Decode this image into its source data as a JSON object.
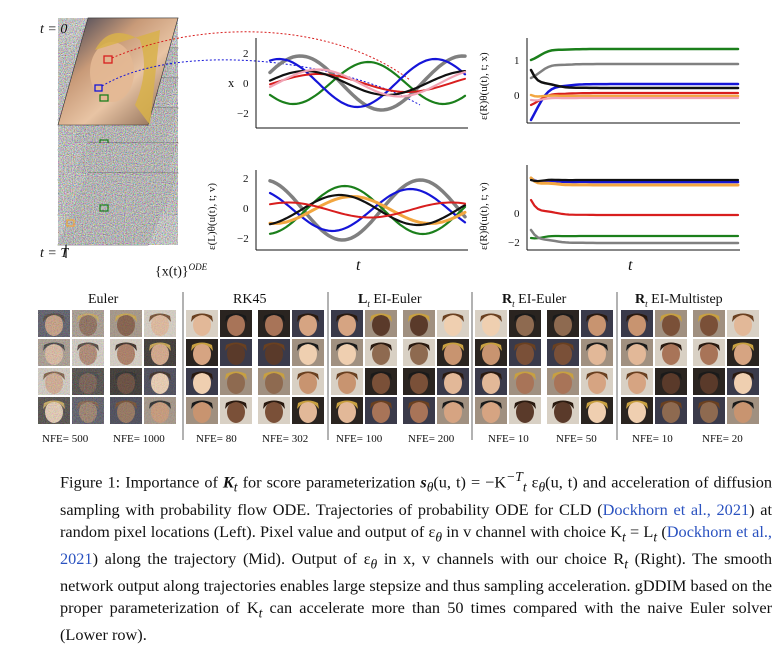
{
  "left": {
    "t_top": "t = 0",
    "t_bottom": "t = T",
    "traj_label": "{x(t)}",
    "traj_sup": "ODE"
  },
  "mid_top": {
    "ylabel": "x",
    "ticks": [
      "2",
      "0",
      "−2"
    ]
  },
  "mid_bottom": {
    "ylabel": "ε(L)θ(u(t), t; v)",
    "ticks": [
      "2",
      "0",
      "−2"
    ],
    "xlabel": "t"
  },
  "right_top": {
    "ylabel": "ε(R)θ(u(t), t; x)",
    "ticks": [
      "1",
      "0"
    ]
  },
  "right_bottom": {
    "ylabel": "ε(R)θ(u(t), t; v)",
    "ticks": [
      "0",
      "−2"
    ],
    "xlabel": "t"
  },
  "methods": [
    {
      "name": "Euler",
      "nfe": [
        "NFE= 500",
        "NFE= 1000"
      ]
    },
    {
      "name": "RK45",
      "nfe": [
        "NFE= 80",
        "NFE= 302"
      ]
    },
    {
      "name_bold": "L",
      "name_sub": "t",
      "name_rest": " EI-Euler",
      "nfe": [
        "NFE= 100",
        "NFE= 200"
      ]
    },
    {
      "name_bold": "R",
      "name_sub": "t",
      "name_rest": " EI-Euler",
      "nfe": [
        "NFE= 10",
        "NFE= 50"
      ]
    },
    {
      "name_bold": "R",
      "name_sub": "t",
      "name_rest": " EI-Multistep",
      "nfe": [
        "NFE= 10",
        "NFE= 20"
      ]
    }
  ],
  "caption": {
    "p1": "Figure 1: Importance of ",
    "k1": "K",
    "p2": " for score parameterization ",
    "s": "s",
    "p3": "(u, t) = −K",
    "p4": " ε",
    "p5": "(u, t) and acceleration of diffusion sampling with probability flow ODE. Trajectories of probability ODE for CLD (",
    "ref1": "Dockhorn et al., 2021",
    "p6": ") at random pixel locations (Left). Pixel value and output of ε",
    "p7": " in v channel with choice K",
    "p8": " = L",
    "p9": " (",
    "ref2": "Dockhorn et al., 2021",
    "p10": ") along the trajectory (Mid). Output of ε",
    "p11": " in x, v channels with our choice R",
    "p12": " (Right). The smooth network output along trajectories enables large stepsize and thus sampling acceleration. gDDIM based on the proper parameterization of K",
    "p13": " can accelerate more than 50 times compared with the naive Euler solver (Lower row)."
  },
  "colors": {
    "green": "#1b7f1b",
    "gray": "#808080",
    "blue": "#1515d8",
    "red": "#d81e1e",
    "black": "#111111",
    "orange": "#f2a640",
    "pink": "#f1a3b4"
  }
}
